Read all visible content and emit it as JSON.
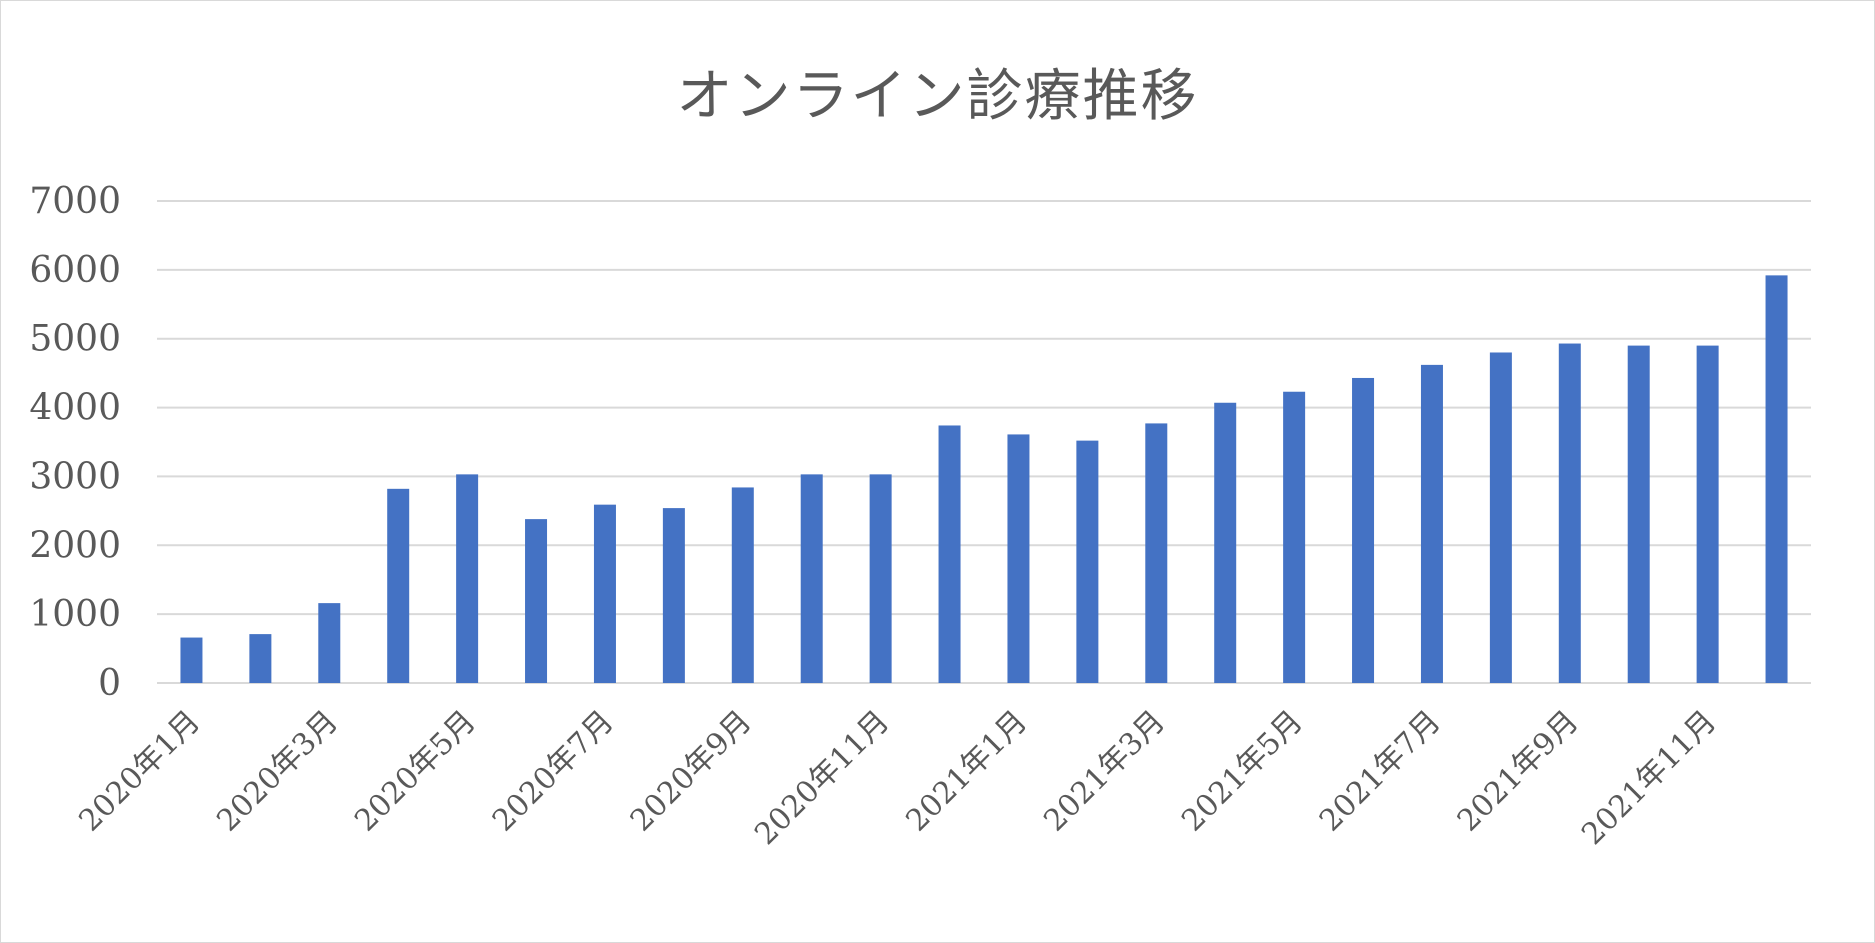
{
  "chart_data": {
    "type": "bar",
    "title": "オンライン診療推移",
    "categories": [
      "2020年1月",
      "2020年2月",
      "2020年3月",
      "2020年4月",
      "2020年5月",
      "2020年6月",
      "2020年7月",
      "2020年8月",
      "2020年9月",
      "2020年10月",
      "2020年11月",
      "2020年12月",
      "2021年1月",
      "2021年2月",
      "2021年3月",
      "2021年4月",
      "2021年5月",
      "2021年6月",
      "2021年7月",
      "2021年8月",
      "2021年9月",
      "2021年10月",
      "2021年11月",
      "2021年12月"
    ],
    "x_tick_labels": [
      "2020年1月",
      "2020年3月",
      "2020年5月",
      "2020年7月",
      "2020年9月",
      "2020年11月",
      "2021年1月",
      "2021年3月",
      "2021年5月",
      "2021年7月",
      "2021年9月",
      "2021年11月"
    ],
    "values": [
      660,
      710,
      1160,
      2820,
      3030,
      2380,
      2590,
      2540,
      2840,
      3030,
      3030,
      3740,
      3610,
      3520,
      3770,
      4070,
      4230,
      4430,
      4620,
      4800,
      4930,
      4900,
      4900,
      5920
    ],
    "y_ticks": [
      "0",
      "1000",
      "2000",
      "3000",
      "4000",
      "5000",
      "6000",
      "7000"
    ],
    "ylim": [
      0,
      7000
    ],
    "xlabel": "",
    "ylabel": "",
    "grid": true,
    "legend": "none",
    "bar_color": "#4472C4",
    "grid_color": "#d9d9d9"
  }
}
